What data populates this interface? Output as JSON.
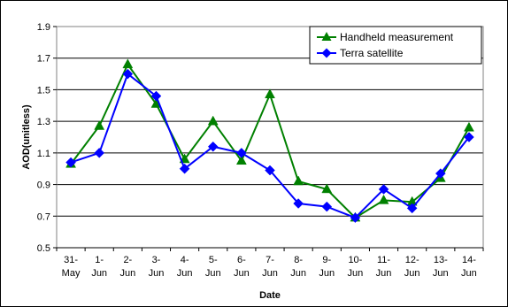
{
  "chart_data": {
    "type": "line",
    "title": "",
    "xlabel": "Date",
    "ylabel": "AOD(unitless)",
    "ylim": [
      0.5,
      1.9
    ],
    "yticks": [
      "0.5",
      "0.7",
      "0.9",
      "1.1",
      "1.3",
      "1.5",
      "1.7",
      "1.9"
    ],
    "grid": "horizontal",
    "legend_position": "top-right",
    "categories": [
      [
        "31-",
        "May"
      ],
      [
        "1-",
        "Jun"
      ],
      [
        "2-",
        "Jun"
      ],
      [
        "3-",
        "Jun"
      ],
      [
        "4-",
        "Jun"
      ],
      [
        "5-",
        "Jun"
      ],
      [
        "6-",
        "Jun"
      ],
      [
        "7-",
        "Jun"
      ],
      [
        "8-",
        "Jun"
      ],
      [
        "9-",
        "Jun"
      ],
      [
        "10-",
        "Jun"
      ],
      [
        "11-",
        "Jun"
      ],
      [
        "12-",
        "Jun"
      ],
      [
        "13-",
        "Jun"
      ],
      [
        "14-",
        "Jun"
      ]
    ],
    "series": [
      {
        "name": "Handheld measurement",
        "color": "#008000",
        "marker": "triangle",
        "values": [
          1.03,
          1.27,
          1.66,
          1.41,
          1.06,
          1.3,
          1.05,
          1.47,
          0.92,
          0.87,
          0.69,
          0.8,
          0.79,
          0.94,
          1.26
        ]
      },
      {
        "name": "Terra satellite",
        "color": "#0000FF",
        "marker": "diamond",
        "values": [
          1.04,
          1.1,
          1.6,
          1.46,
          1.0,
          1.14,
          1.1,
          0.99,
          0.78,
          0.76,
          0.69,
          0.87,
          0.75,
          0.97,
          1.2
        ]
      }
    ]
  }
}
